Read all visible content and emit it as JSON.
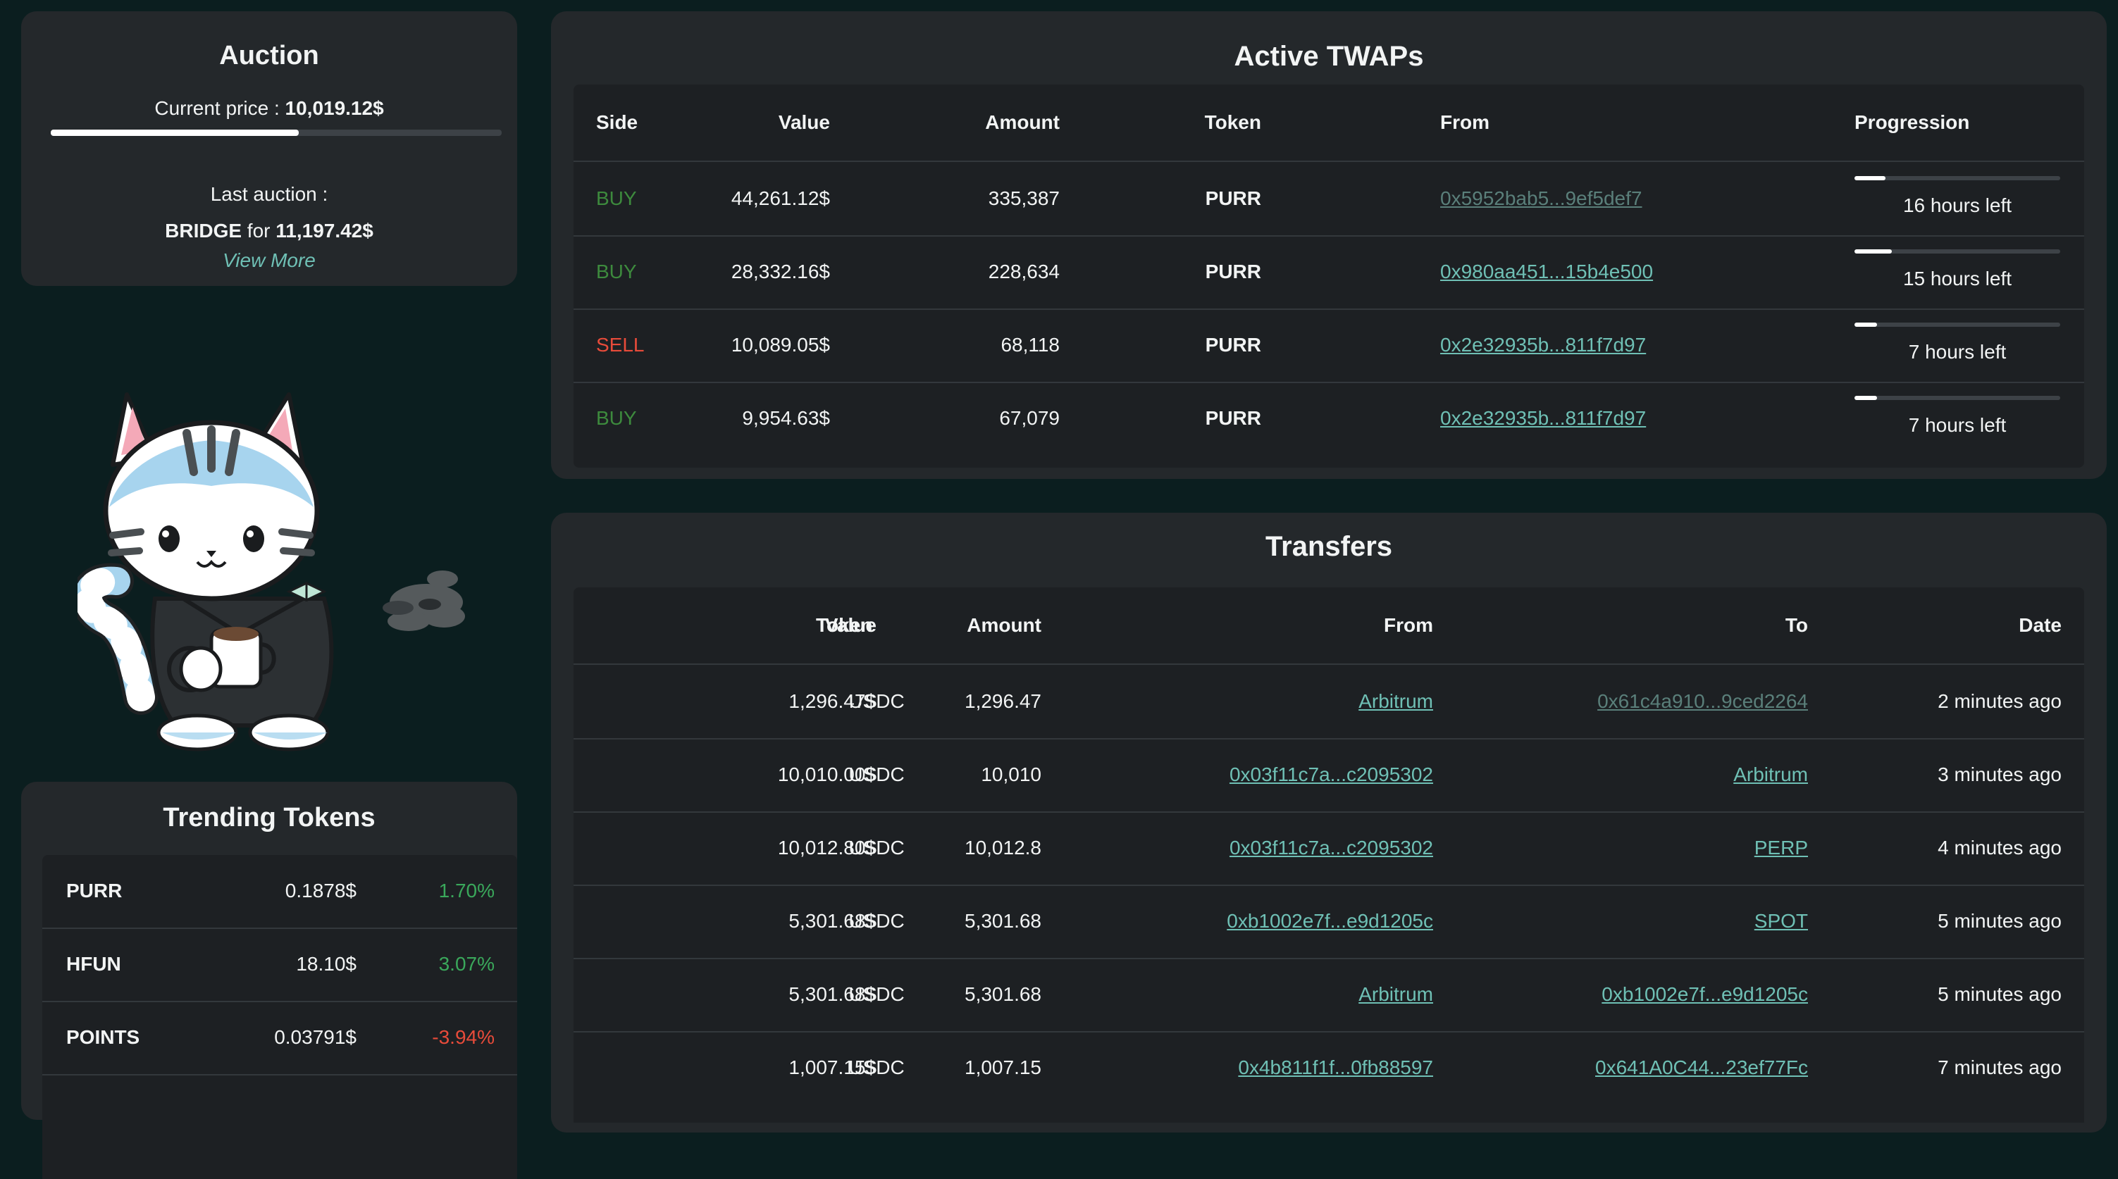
{
  "auction": {
    "title": "Auction",
    "current_price_label": "Current price : ",
    "current_price": "10,019.12$",
    "progress_fraction": 0.55,
    "last_label": "Last auction :",
    "last_token": "BRIDGE",
    "last_for": " for ",
    "last_price": "11,197.42$",
    "view_more": "View More"
  },
  "trending": {
    "title": "Trending Tokens",
    "rows": [
      {
        "token": "PURR",
        "price": "0.1878$",
        "change": "1.70%",
        "dir": "pos"
      },
      {
        "token": "HFUN",
        "price": "18.10$",
        "change": "3.07%",
        "dir": "pos"
      },
      {
        "token": "POINTS",
        "price": "0.03791$",
        "change": "-3.94%",
        "dir": "neg"
      }
    ]
  },
  "twaps": {
    "title": "Active TWAPs",
    "headers": {
      "side": "Side",
      "value": "Value",
      "amount": "Amount",
      "token": "Token",
      "from": "From",
      "progression": "Progression"
    },
    "rows": [
      {
        "side": "BUY",
        "value": "44,261.12$",
        "amount": "335,387",
        "token": "PURR",
        "from": "0x5952bab5...9ef5def7",
        "from_dim": true,
        "progress": 0.15,
        "left": "16 hours left"
      },
      {
        "side": "BUY",
        "value": "28,332.16$",
        "amount": "228,634",
        "token": "PURR",
        "from": "0x980aa451...15b4e500",
        "from_dim": false,
        "progress": 0.18,
        "left": "15 hours left"
      },
      {
        "side": "SELL",
        "value": "10,089.05$",
        "amount": "68,118",
        "token": "PURR",
        "from": "0x2e32935b...811f7d97",
        "from_dim": false,
        "progress": 0.11,
        "left": "7 hours left"
      },
      {
        "side": "BUY",
        "value": "9,954.63$",
        "amount": "67,079",
        "token": "PURR",
        "from": "0x2e32935b...811f7d97",
        "from_dim": false,
        "progress": 0.11,
        "left": "7 hours left"
      }
    ]
  },
  "transfers": {
    "title": "Transfers",
    "headers": {
      "value": "Value",
      "token": "Token",
      "amount": "Amount",
      "from": "From",
      "to": "To",
      "date": "Date"
    },
    "rows": [
      {
        "value": "1,296.47$",
        "token": "USDC",
        "amount": "1,296.47",
        "from": "Arbitrum",
        "to": "0x61c4a910...9ced2264",
        "to_dim": true,
        "date": "2 minutes ago"
      },
      {
        "value": "10,010.00$",
        "token": "USDC",
        "amount": "10,010",
        "from": "0x03f11c7a...c2095302",
        "to": "Arbitrum",
        "to_dim": false,
        "date": "3 minutes ago"
      },
      {
        "value": "10,012.80$",
        "token": "USDC",
        "amount": "10,012.8",
        "from": "0x03f11c7a...c2095302",
        "to": "PERP",
        "to_dim": false,
        "date": "4 minutes ago"
      },
      {
        "value": "5,301.68$",
        "token": "USDC",
        "amount": "5,301.68",
        "from": "0xb1002e7f...e9d1205c",
        "to": "SPOT",
        "to_dim": false,
        "date": "5 minutes ago"
      },
      {
        "value": "5,301.68$",
        "token": "USDC",
        "amount": "5,301.68",
        "from": "Arbitrum",
        "to": "0xb1002e7f...e9d1205c",
        "to_dim": false,
        "date": "5 minutes ago"
      },
      {
        "value": "1,007.15$",
        "token": "USDC",
        "amount": "1,007.15",
        "from": "0x4b811f1f...0fb88597",
        "to": "0x641A0C44...23ef77Fc",
        "to_dim": false,
        "date": "7 minutes ago"
      }
    ]
  }
}
